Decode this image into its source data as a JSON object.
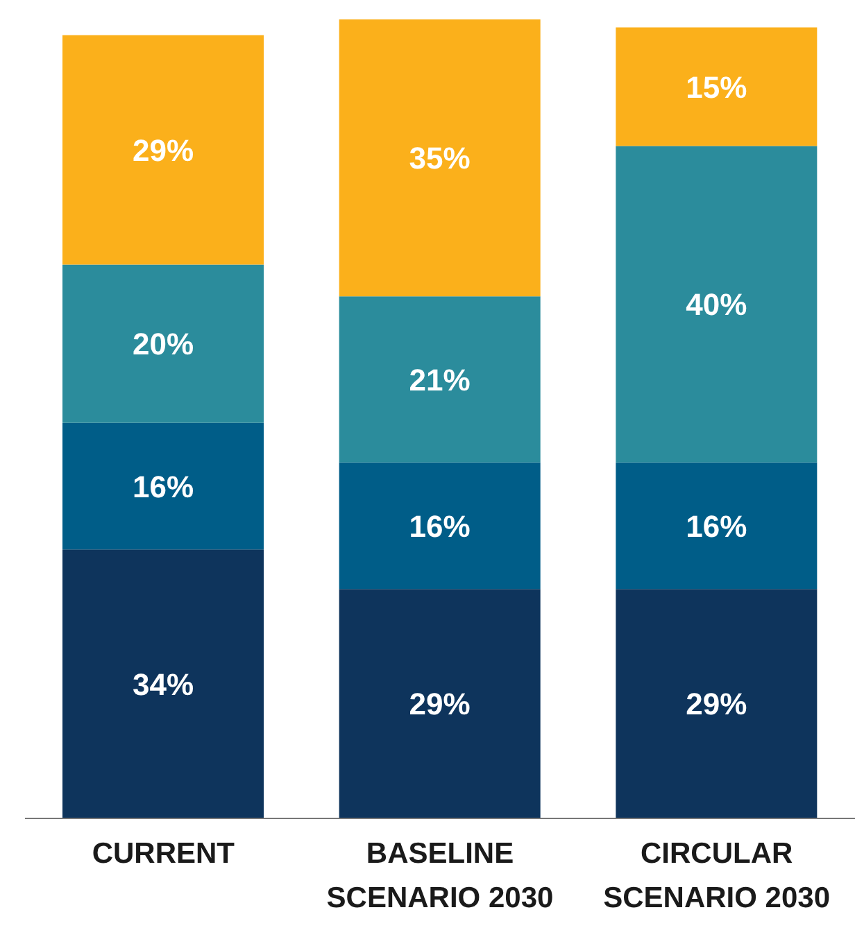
{
  "chart_data": {
    "type": "bar",
    "stacked": true,
    "categories": [
      "CURRENT",
      "BASELINE SCENARIO 2030",
      "CIRCULAR SCENARIO 2030"
    ],
    "series": [
      {
        "color": "#0e345c",
        "values": [
          34,
          29,
          29
        ],
        "value_labels": [
          "34%",
          "29%",
          "29%"
        ]
      },
      {
        "color": "#005d88",
        "values": [
          16,
          16,
          16
        ],
        "value_labels": [
          "16%",
          "16%",
          "16%"
        ]
      },
      {
        "color": "#2b8c9c",
        "values": [
          20,
          21,
          40
        ],
        "value_labels": [
          "20%",
          "21%",
          "40%"
        ]
      },
      {
        "color": "#fbb01b",
        "values": [
          29,
          35,
          15
        ],
        "value_labels": [
          "29%",
          "35%",
          "15%"
        ]
      }
    ],
    "grid": false,
    "legend": false
  }
}
